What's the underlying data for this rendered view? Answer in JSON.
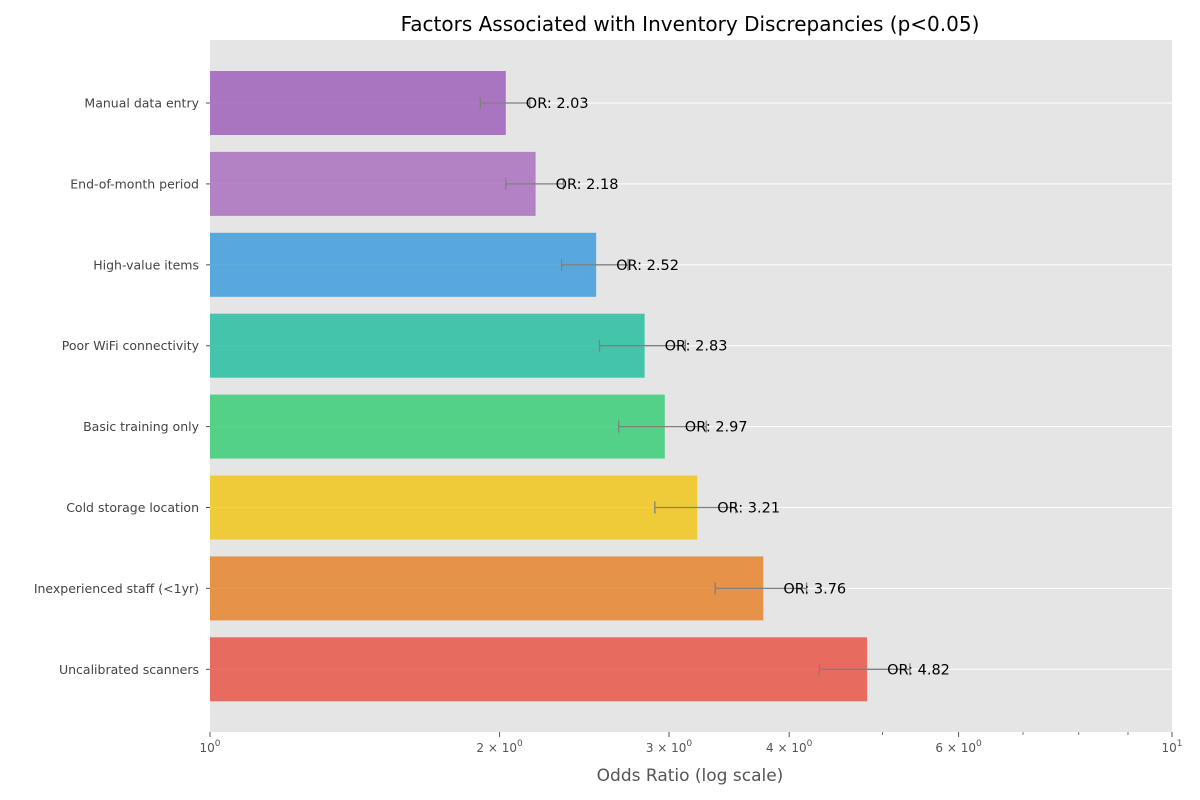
{
  "chart_data": {
    "type": "bar",
    "orientation": "horizontal",
    "title": "Factors Associated with Inventory Discrepancies (p<0.05)",
    "xlabel": "Odds Ratio (log scale)",
    "ylabel": "",
    "xscale": "log",
    "xlim": [
      1,
      10
    ],
    "grid": true,
    "x_ticks": [
      {
        "value": 1,
        "base": "10",
        "exp": "0"
      },
      {
        "value": 2,
        "base": "2 × 10",
        "exp": "0"
      },
      {
        "value": 3,
        "base": "3 × 10",
        "exp": "0"
      },
      {
        "value": 4,
        "base": "4 × 10",
        "exp": "0"
      },
      {
        "value": 6,
        "base": "6 × 10",
        "exp": "0"
      },
      {
        "value": 10,
        "base": "10",
        "exp": "1"
      }
    ],
    "x_minor_ticks": [
      5,
      7,
      8,
      9
    ],
    "categories": [
      "Manual data entry",
      "End-of-month period",
      "High-value items",
      "Poor WiFi connectivity",
      "Basic training only",
      "Cold storage location",
      "Inexperienced staff (<1yr)",
      "Uncalibrated scanners"
    ],
    "values": [
      2.03,
      2.18,
      2.52,
      2.83,
      2.97,
      3.21,
      3.76,
      4.82
    ],
    "ci_lower": [
      1.91,
      2.03,
      2.32,
      2.54,
      2.66,
      2.9,
      3.35,
      4.3
    ],
    "ci_upper": [
      2.15,
      2.33,
      2.72,
      3.12,
      3.28,
      3.52,
      4.17,
      5.34
    ],
    "data_labels": [
      "OR: 2.03",
      "OR: 2.18",
      "OR: 2.52",
      "OR: 2.83",
      "OR: 2.97",
      "OR: 3.21",
      "OR: 3.76",
      "OR: 4.82"
    ],
    "colors": [
      "#9b59b6",
      "#a569bd",
      "#3498db",
      "#1abc9c",
      "#2ecc71",
      "#f1c40f",
      "#e67e22",
      "#e74c3c"
    ],
    "plot_background": "#e5e5e5",
    "errorbar_color": "#808080"
  }
}
